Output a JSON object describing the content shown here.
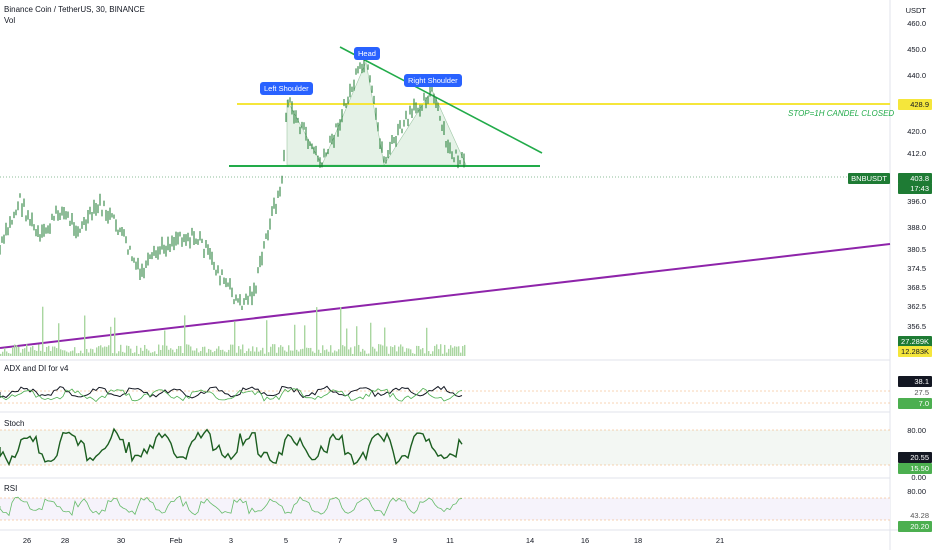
{
  "header": {
    "title": "Binance Coin / TetherUS, 30, BINANCE",
    "volume_label": "Vol"
  },
  "currency": "USDT",
  "price_axis": [
    "460.0",
    "450.0",
    "440.0",
    "428.9",
    "420.0",
    "412.0",
    "396.0",
    "388.0",
    "380.5",
    "374.5",
    "368.5",
    "362.5",
    "356.5"
  ],
  "badges": {
    "price_symbol": "BNBUSDT",
    "price_value": "403.8",
    "price_countdown": "17:43",
    "level_value": "428.9",
    "vol_value_1": "27.289K",
    "vol_value_2": "12.283K",
    "adx_value": "38.1",
    "adx_value_2": "27.5",
    "adx_value_3": "7.0",
    "stoch_value": "20.55",
    "stoch_value_2": "15.50",
    "rsi_value": "43.28",
    "rsi_value_2": "20.20"
  },
  "annotations": {
    "left_shoulder": "Left Shoulder",
    "head": "Head",
    "right_shoulder": "Right Shoulder",
    "stop_note": "STOP=1H CANDEL CLOSED"
  },
  "indicators": {
    "adx_title": "ADX and DI for v4",
    "adx_axis": [],
    "stoch_title": "Stoch",
    "stoch_axis": [
      "80.00",
      "0.00"
    ],
    "rsi_title": "RSI",
    "rsi_axis": [
      "80.00"
    ]
  },
  "time_axis": [
    "26",
    "28",
    "30",
    "Feb",
    "3",
    "5",
    "7",
    "9",
    "11",
    "14",
    "16",
    "18",
    "21"
  ],
  "colors": {
    "candle": "#1b7a2f",
    "neckline": "#22ab4a",
    "resistance": "#f5e63b",
    "trendline": "#8e24aa",
    "pattern_fill": "#cfe8d4",
    "badge_green": "#1e7b34",
    "tag_blue": "#2962ff"
  }
}
